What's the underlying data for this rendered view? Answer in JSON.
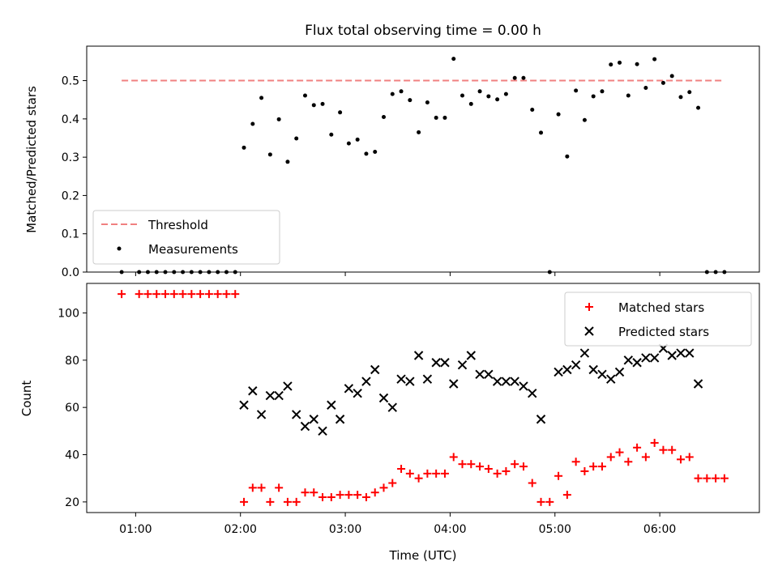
{
  "chart_data": [
    {
      "type": "scatter",
      "title": "Flux total observing time = 0.00 h",
      "xlabel": "",
      "ylabel": "Matched/Predicted stars",
      "xlim": [
        "00:32",
        "06:57"
      ],
      "ylim": [
        0,
        0.59
      ],
      "yticks": [
        "0.0",
        "0.1",
        "0.2",
        "0.3",
        "0.4",
        "0.5"
      ],
      "legend": {
        "location": "lower-left",
        "entries": [
          "Threshold",
          "Measurements"
        ]
      },
      "threshold": {
        "name": "Threshold",
        "value": 0.5,
        "x": [
          "00:52",
          "06:37"
        ],
        "color": "#f08080",
        "style": "dashed"
      },
      "series": [
        {
          "name": "Measurements",
          "marker": "dot",
          "color": "#000000",
          "points": [
            [
              "00:52",
              0.0
            ],
            [
              "01:02",
              0.0
            ],
            [
              "01:07",
              0.0
            ],
            [
              "01:12",
              0.0
            ],
            [
              "01:17",
              0.0
            ],
            [
              "01:22",
              0.0
            ],
            [
              "01:27",
              0.0
            ],
            [
              "01:32",
              0.0
            ],
            [
              "01:37",
              0.0
            ],
            [
              "01:42",
              0.0
            ],
            [
              "01:47",
              0.0
            ],
            [
              "01:52",
              0.0
            ],
            [
              "01:57",
              0.0
            ],
            [
              "02:02",
              0.325
            ],
            [
              "02:07",
              0.387
            ],
            [
              "02:12",
              0.455
            ],
            [
              "02:17",
              0.307
            ],
            [
              "02:22",
              0.399
            ],
            [
              "02:27",
              0.288
            ],
            [
              "02:32",
              0.349
            ],
            [
              "02:37",
              0.461
            ],
            [
              "02:42",
              0.436
            ],
            [
              "02:47",
              0.439
            ],
            [
              "02:52",
              0.359
            ],
            [
              "02:57",
              0.417
            ],
            [
              "03:02",
              0.336
            ],
            [
              "03:07",
              0.346
            ],
            [
              "03:12",
              0.309
            ],
            [
              "03:17",
              0.314
            ],
            [
              "03:22",
              0.405
            ],
            [
              "03:27",
              0.465
            ],
            [
              "03:32",
              0.472
            ],
            [
              "03:37",
              0.449
            ],
            [
              "03:42",
              0.365
            ],
            [
              "03:47",
              0.443
            ],
            [
              "03:52",
              0.403
            ],
            [
              "03:57",
              0.403
            ],
            [
              "04:02",
              0.557
            ],
            [
              "04:07",
              0.461
            ],
            [
              "04:12",
              0.439
            ],
            [
              "04:17",
              0.472
            ],
            [
              "04:22",
              0.459
            ],
            [
              "04:27",
              0.451
            ],
            [
              "04:32",
              0.465
            ],
            [
              "04:37",
              0.507
            ],
            [
              "04:42",
              0.507
            ],
            [
              "04:47",
              0.424
            ],
            [
              "04:52",
              0.364
            ],
            [
              "04:57",
              0.0
            ],
            [
              "05:02",
              0.412
            ],
            [
              "05:07",
              0.302
            ],
            [
              "05:12",
              0.474
            ],
            [
              "05:17",
              0.397
            ],
            [
              "05:22",
              0.459
            ],
            [
              "05:27",
              0.472
            ],
            [
              "05:32",
              0.542
            ],
            [
              "05:37",
              0.547
            ],
            [
              "05:42",
              0.461
            ],
            [
              "05:47",
              0.543
            ],
            [
              "05:52",
              0.481
            ],
            [
              "05:57",
              0.556
            ],
            [
              "06:02",
              0.494
            ],
            [
              "06:07",
              0.512
            ],
            [
              "06:12",
              0.457
            ],
            [
              "06:17",
              0.47
            ],
            [
              "06:22",
              0.429
            ],
            [
              "06:27",
              0.0
            ],
            [
              "06:32",
              0.0
            ],
            [
              "06:37",
              0.0
            ]
          ]
        }
      ]
    },
    {
      "type": "scatter",
      "title": "",
      "xlabel": "Time (UTC)",
      "ylabel": "Count",
      "xlim": [
        "00:32",
        "06:57"
      ],
      "ylim": [
        15.5,
        112.5
      ],
      "xticks": [
        "01:00",
        "02:00",
        "03:00",
        "04:00",
        "05:00",
        "06:00"
      ],
      "yticks": [
        "20",
        "40",
        "60",
        "80",
        "100"
      ],
      "legend": {
        "location": "upper-right",
        "entries": [
          "Matched stars",
          "Predicted stars"
        ]
      },
      "series": [
        {
          "name": "Matched stars",
          "marker": "plus",
          "color": "#ff0000",
          "points": [
            [
              "00:52",
              108
            ],
            [
              "01:02",
              108
            ],
            [
              "01:07",
              108
            ],
            [
              "01:12",
              108
            ],
            [
              "01:17",
              108
            ],
            [
              "01:22",
              108
            ],
            [
              "01:27",
              108
            ],
            [
              "01:32",
              108
            ],
            [
              "01:37",
              108
            ],
            [
              "01:42",
              108
            ],
            [
              "01:47",
              108
            ],
            [
              "01:52",
              108
            ],
            [
              "01:57",
              108
            ],
            [
              "02:02",
              20
            ],
            [
              "02:07",
              26
            ],
            [
              "02:12",
              26
            ],
            [
              "02:17",
              20
            ],
            [
              "02:22",
              26
            ],
            [
              "02:27",
              20
            ],
            [
              "02:32",
              20
            ],
            [
              "02:37",
              24
            ],
            [
              "02:42",
              24
            ],
            [
              "02:47",
              22
            ],
            [
              "02:52",
              22
            ],
            [
              "02:57",
              23
            ],
            [
              "03:02",
              23
            ],
            [
              "03:07",
              23
            ],
            [
              "03:12",
              22
            ],
            [
              "03:17",
              24
            ],
            [
              "03:22",
              26
            ],
            [
              "03:27",
              28
            ],
            [
              "03:32",
              34
            ],
            [
              "03:37",
              32
            ],
            [
              "03:42",
              30
            ],
            [
              "03:47",
              32
            ],
            [
              "03:52",
              32
            ],
            [
              "03:57",
              32
            ],
            [
              "04:02",
              39
            ],
            [
              "04:07",
              36
            ],
            [
              "04:12",
              36
            ],
            [
              "04:17",
              35
            ],
            [
              "04:22",
              34
            ],
            [
              "04:27",
              32
            ],
            [
              "04:32",
              33
            ],
            [
              "04:37",
              36
            ],
            [
              "04:42",
              35
            ],
            [
              "04:47",
              28
            ],
            [
              "04:52",
              20
            ],
            [
              "04:57",
              20
            ],
            [
              "05:02",
              31
            ],
            [
              "05:07",
              23
            ],
            [
              "05:12",
              37
            ],
            [
              "05:17",
              33
            ],
            [
              "05:22",
              35
            ],
            [
              "05:27",
              35
            ],
            [
              "05:32",
              39
            ],
            [
              "05:37",
              41
            ],
            [
              "05:42",
              37
            ],
            [
              "05:47",
              43
            ],
            [
              "05:52",
              39
            ],
            [
              "05:57",
              45
            ],
            [
              "06:02",
              42
            ],
            [
              "06:07",
              42
            ],
            [
              "06:12",
              38
            ],
            [
              "06:17",
              39
            ],
            [
              "06:22",
              30
            ],
            [
              "06:27",
              30
            ],
            [
              "06:32",
              30
            ],
            [
              "06:37",
              30
            ]
          ]
        },
        {
          "name": "Predicted stars",
          "marker": "x",
          "color": "#000000",
          "points": [
            [
              "02:02",
              61
            ],
            [
              "02:07",
              67
            ],
            [
              "02:12",
              57
            ],
            [
              "02:17",
              65
            ],
            [
              "02:22",
              65
            ],
            [
              "02:27",
              69
            ],
            [
              "02:32",
              57
            ],
            [
              "02:37",
              52
            ],
            [
              "02:42",
              55
            ],
            [
              "02:47",
              50
            ],
            [
              "02:52",
              61
            ],
            [
              "02:57",
              55
            ],
            [
              "03:02",
              68
            ],
            [
              "03:07",
              66
            ],
            [
              "03:12",
              71
            ],
            [
              "03:17",
              76
            ],
            [
              "03:22",
              64
            ],
            [
              "03:27",
              60
            ],
            [
              "03:32",
              72
            ],
            [
              "03:37",
              71
            ],
            [
              "03:42",
              82
            ],
            [
              "03:47",
              72
            ],
            [
              "03:52",
              79
            ],
            [
              "03:57",
              79
            ],
            [
              "04:02",
              70
            ],
            [
              "04:07",
              78
            ],
            [
              "04:12",
              82
            ],
            [
              "04:17",
              74
            ],
            [
              "04:22",
              74
            ],
            [
              "04:27",
              71
            ],
            [
              "04:32",
              71
            ],
            [
              "04:37",
              71
            ],
            [
              "04:42",
              69
            ],
            [
              "04:47",
              66
            ],
            [
              "04:52",
              55
            ],
            [
              "05:02",
              75
            ],
            [
              "05:07",
              76
            ],
            [
              "05:12",
              78
            ],
            [
              "05:17",
              83
            ],
            [
              "05:22",
              76
            ],
            [
              "05:27",
              74
            ],
            [
              "05:32",
              72
            ],
            [
              "05:37",
              75
            ],
            [
              "05:42",
              80
            ],
            [
              "05:47",
              79
            ],
            [
              "05:52",
              81
            ],
            [
              "05:57",
              81
            ],
            [
              "06:02",
              85
            ],
            [
              "06:07",
              82
            ],
            [
              "06:12",
              83
            ],
            [
              "06:17",
              83
            ],
            [
              "06:22",
              70
            ]
          ]
        }
      ]
    }
  ]
}
